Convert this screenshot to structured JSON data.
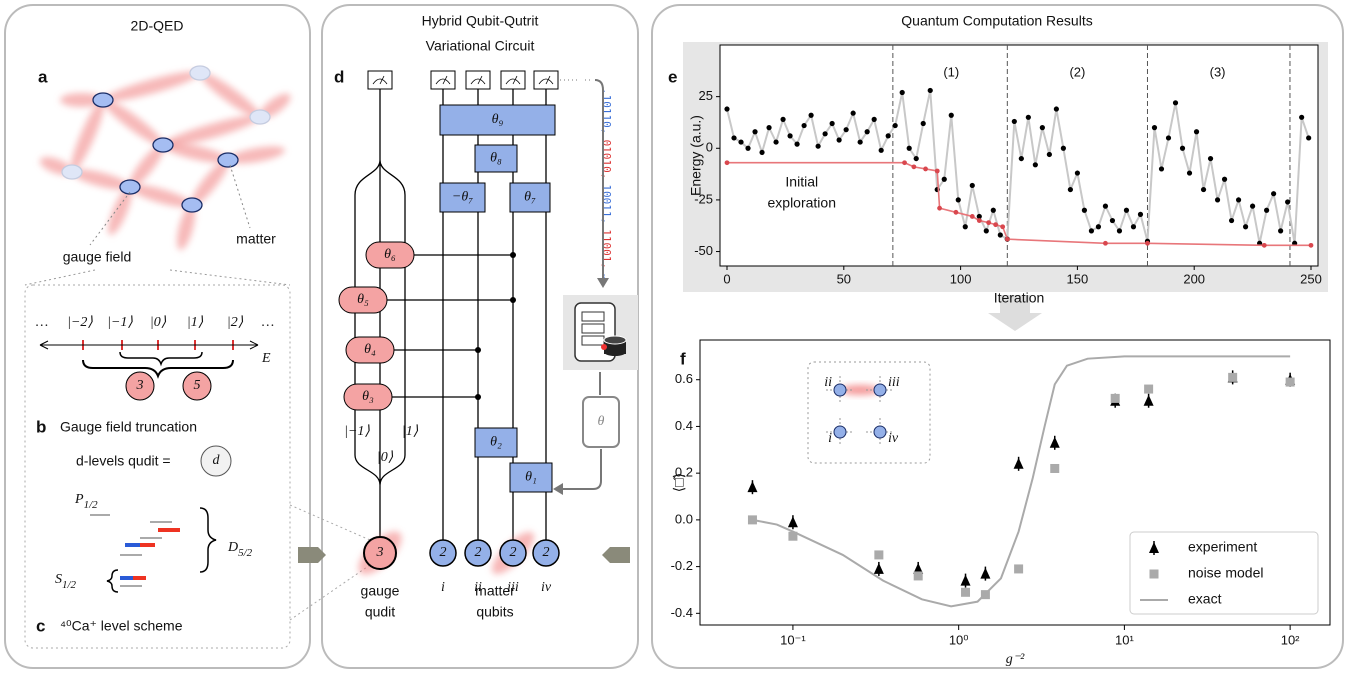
{
  "qed_panel": {
    "title": "2D-QED",
    "label": "a",
    "gauge_field": "gauge field",
    "matter": "matter",
    "states": [
      "…",
      "|−2⟩",
      "|−1⟩",
      "|0⟩",
      "|1⟩",
      "|2⟩",
      "…"
    ],
    "energy": "E",
    "qudits": [
      "3",
      "5"
    ],
    "truncation": {
      "label": "b",
      "text": "Gauge field truncation",
      "qudit": "d-levels qudit =",
      "symbol": "d"
    },
    "levels": {
      "label": "c",
      "text": "⁴⁰Ca⁺ level scheme",
      "P": {
        "symbol": "P",
        "sub": "1/2"
      },
      "D": {
        "symbol": "D",
        "sub": "5/2"
      },
      "S": {
        "symbol": "S",
        "sub": "1/2"
      }
    }
  },
  "circuit_panel": {
    "title": [
      "Hybrid Qubit-Qutrit",
      "Variational Circuit"
    ],
    "label": "d",
    "blue_gates": [
      "θ₉",
      "θ₈",
      "−θ₇",
      "θ₇",
      "θ₂",
      "θ₁"
    ],
    "red_gates": [
      "θ₆",
      "θ₅",
      "θ₄",
      "θ₃"
    ],
    "branch_states": [
      "|−1⟩",
      "|0⟩",
      "|1⟩"
    ],
    "gauge_qudit": "3",
    "matter_qubits": [
      "2",
      "2",
      "2",
      "2"
    ],
    "qubit_names": [
      "i",
      "ii",
      "iii",
      "iv"
    ],
    "gauge_label": [
      "gauge",
      "qudit"
    ],
    "matter_label": [
      "matter",
      "qubits"
    ],
    "bitstrings": [
      ".10110,",
      "01010,",
      "10011,",
      "11001,",
      "…"
    ],
    "parameter": "θ"
  },
  "results_panel": {
    "title": "Quantum Computation Results"
  },
  "chart_data": [
    {
      "type": "line",
      "label": "e",
      "xlabel": "Iteration",
      "ylabel": "Energy (a.u.)",
      "xlim": [
        -3,
        253
      ],
      "ylim": [
        -57,
        50
      ],
      "xticks": [
        0,
        50,
        100,
        150,
        200,
        250
      ],
      "yticks": [
        -50,
        -25,
        0,
        25
      ],
      "vlines": [
        71,
        120,
        180,
        241
      ],
      "annotations": [
        "(1)",
        "(2)",
        "(3)"
      ],
      "note": [
        "Initial",
        "exploration"
      ],
      "series": [
        {
          "color": "#c8c8c8",
          "marker_color": "#000000",
          "x": [
            0,
            3,
            6,
            9,
            12,
            15,
            18,
            21,
            24,
            27,
            30,
            33,
            36,
            39,
            42,
            45,
            48,
            51,
            54,
            57,
            60,
            63,
            66,
            69,
            72,
            75,
            78,
            81,
            84,
            87,
            90,
            93,
            96,
            99,
            102,
            105,
            108,
            111,
            114,
            117,
            120,
            123,
            126,
            129,
            132,
            135,
            138,
            141,
            144,
            147,
            150,
            153,
            156,
            159,
            162,
            165,
            168,
            171,
            174,
            177,
            180,
            183,
            186,
            189,
            192,
            195,
            198,
            201,
            204,
            207,
            210,
            213,
            216,
            219,
            222,
            225,
            228,
            231,
            234,
            237,
            240,
            243,
            246,
            249
          ],
          "values": [
            19,
            5,
            3,
            0,
            8,
            -2,
            10,
            3,
            14,
            6,
            2,
            11,
            16,
            1,
            7,
            12,
            4,
            9,
            17,
            3,
            8,
            14,
            -1,
            6,
            11,
            27,
            0,
            -5,
            12,
            28,
            -20,
            -15,
            16,
            -25,
            -38,
            -18,
            -33,
            -40,
            -30,
            -42,
            -44,
            13,
            -5,
            15,
            -8,
            10,
            -3,
            19,
            0,
            -20,
            -12,
            -30,
            -40,
            -38,
            -28,
            -35,
            -40,
            -30,
            -38,
            -32,
            -45,
            10,
            -10,
            5,
            22,
            0,
            -12,
            8,
            -20,
            -5,
            -25,
            -15,
            -35,
            -25,
            -38,
            -28,
            -46,
            -30,
            -22,
            -40,
            -26,
            -46,
            15,
            5
          ]
        },
        {
          "color": "#e8767a",
          "marker_color": "#d9474e",
          "x": [
            0,
            76,
            80,
            85,
            90,
            91,
            98,
            105,
            108,
            112,
            115,
            118,
            120,
            162,
            180,
            230,
            250
          ],
          "values": [
            -7,
            -7,
            -9,
            -10,
            -11,
            -29,
            -31,
            -33,
            -35,
            -36,
            -37,
            -38,
            -44,
            -46,
            -46,
            -47,
            -47
          ]
        }
      ]
    },
    {
      "type": "scatter",
      "label": "f",
      "xlabel": "g⁻²",
      "ylabel": "⟨□̂⟩",
      "xscale": "log",
      "xlim": [
        0.0275,
        174
      ],
      "ylim": [
        -0.45,
        0.77
      ],
      "xticks": [
        {
          "value": 0.1,
          "label": "10⁻¹"
        },
        {
          "value": 1,
          "label": "10⁰"
        },
        {
          "value": 10,
          "label": "10¹"
        },
        {
          "value": 100,
          "label": "10²"
        }
      ],
      "yticks": [
        -0.4,
        -0.2,
        {
          "value": 0,
          "label": "0.0"
        },
        0.2,
        0.4,
        0.6
      ],
      "legend": "lower right",
      "inset_labels": [
        "ii",
        "iii",
        "i",
        "iv"
      ],
      "series": [
        {
          "name": "experiment",
          "color": "#000000",
          "marker": "triangle",
          "x": [
            0.057,
            0.1,
            0.33,
            0.57,
            1.1,
            1.45,
            2.3,
            3.8,
            8.8,
            14,
            45,
            100
          ],
          "values": [
            0.14,
            -0.01,
            -0.21,
            -0.21,
            -0.26,
            -0.23,
            0.24,
            0.33,
            0.51,
            0.51,
            0.61,
            0.6
          ],
          "errors": [
            0.03,
            0.03,
            0.03,
            0.03,
            0.03,
            0.03,
            0.03,
            0.03,
            0.03,
            0.03,
            0.03,
            0.03
          ]
        },
        {
          "name": "noise model",
          "color": "#aaaaaa",
          "marker": "square",
          "x": [
            0.057,
            0.1,
            0.33,
            0.57,
            1.1,
            1.45,
            2.3,
            3.8,
            8.8,
            14,
            45,
            100
          ],
          "values": [
            0.0,
            -0.07,
            -0.15,
            -0.24,
            -0.31,
            -0.32,
            -0.21,
            0.22,
            0.52,
            0.56,
            0.61,
            0.59
          ]
        },
        {
          "name": "exact",
          "color": "#aaaaaa",
          "marker": "line",
          "x": [
            0.057,
            0.08,
            0.1,
            0.2,
            0.35,
            0.6,
            0.9,
            1.3,
            1.8,
            2.3,
            2.8,
            3.3,
            3.8,
            4.5,
            6,
            10,
            30,
            100
          ],
          "values": [
            0,
            -0.02,
            -0.05,
            -0.15,
            -0.26,
            -0.34,
            -0.37,
            -0.35,
            -0.25,
            -0.05,
            0.18,
            0.4,
            0.58,
            0.66,
            0.69,
            0.7,
            0.7,
            0.7
          ]
        }
      ]
    }
  ]
}
